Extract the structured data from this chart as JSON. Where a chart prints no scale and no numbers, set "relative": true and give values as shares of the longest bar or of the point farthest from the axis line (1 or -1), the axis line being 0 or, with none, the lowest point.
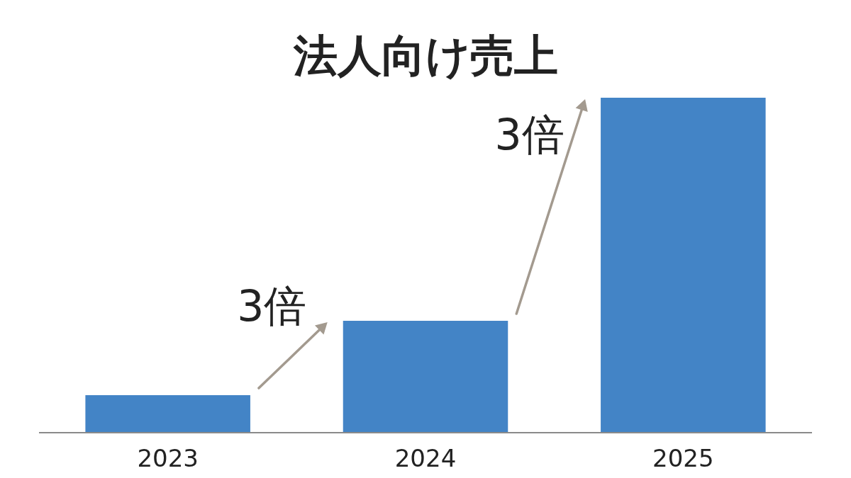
{
  "chart_data": {
    "type": "bar",
    "title": "法人向け売上",
    "relative": true,
    "categories": [
      "2023",
      "2024",
      "2025"
    ],
    "values": [
      0.112,
      0.334,
      1
    ],
    "color": "#4384c6",
    "annotations": [
      "3倍",
      "3倍"
    ]
  }
}
